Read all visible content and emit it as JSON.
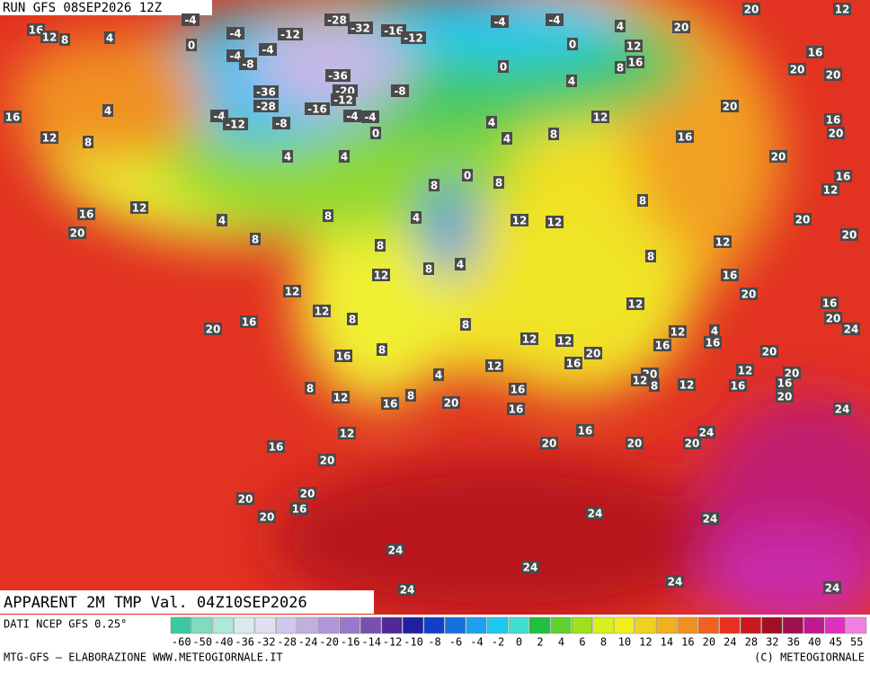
{
  "header": {
    "run": "RUN GFS 08SEP2026 12Z"
  },
  "map": {
    "labels": [
      16,
      12,
      8,
      4,
      -4,
      0,
      -4,
      -12,
      -4,
      -8,
      -4,
      -28,
      -32,
      -16,
      -12,
      -4,
      -4,
      0,
      4,
      12,
      16,
      8,
      0,
      -36,
      -20,
      -8,
      -36,
      -28,
      -4,
      -12,
      -8,
      -16,
      -12,
      -4,
      -4,
      0,
      16,
      12,
      8,
      4,
      4,
      4,
      4,
      4,
      8,
      12,
      4,
      20,
      20,
      12,
      16,
      20,
      20,
      20,
      16,
      16,
      20,
      20,
      16,
      12,
      0,
      8,
      8,
      4,
      8,
      4,
      8,
      12,
      16,
      20,
      12,
      12,
      8,
      12,
      20,
      20,
      8,
      8,
      4,
      12,
      12,
      12,
      8,
      16,
      20,
      8,
      16,
      20,
      16,
      20,
      12,
      8,
      8,
      16,
      12,
      12,
      12,
      4,
      16,
      16,
      20,
      24,
      20,
      16,
      12,
      4,
      8,
      12,
      8,
      16,
      20,
      16,
      16,
      20,
      12,
      8,
      12,
      12,
      16,
      20,
      16,
      20,
      24,
      12,
      16,
      16,
      20,
      20,
      20,
      20,
      24,
      20,
      20,
      20,
      16,
      24,
      24,
      24,
      24,
      24,
      24,
      24
    ]
  },
  "footer": {
    "title": "APPARENT 2M TMP Val. 04Z10SEP2026",
    "source": "DATI NCEP GFS 0.25°",
    "credit": "MTG-GFS — ELABORAZIONE WWW.METEOGIORNALE.IT",
    "copyright": "(C) METEOGIORNALE"
  },
  "legend": {
    "ticks": [
      -60,
      -50,
      -40,
      -36,
      -32,
      -28,
      -24,
      -20,
      -16,
      -14,
      -12,
      -10,
      -8,
      -6,
      -4,
      -2,
      0,
      2,
      4,
      6,
      8,
      10,
      12,
      14,
      16,
      20,
      24,
      28,
      32,
      36,
      40,
      45,
      55
    ],
    "colors": [
      "#3cc8a0",
      "#80dcc0",
      "#b0e8d8",
      "#d8ecf0",
      "#e0e0f0",
      "#d0c8ec",
      "#c0b0e0",
      "#b098d8",
      "#9878c8",
      "#7850b0",
      "#502898",
      "#2020a0",
      "#1040c8",
      "#1870e0",
      "#20a0f0",
      "#20c8f0",
      "#40e0d0",
      "#20c040",
      "#60d030",
      "#a0e020",
      "#d8f020",
      "#f0f020",
      "#f0d020",
      "#f0b020",
      "#f09020",
      "#f06020",
      "#e83020",
      "#c81820",
      "#a01020",
      "#a01050",
      "#c01890",
      "#e030c0",
      "#f080e0"
    ]
  }
}
